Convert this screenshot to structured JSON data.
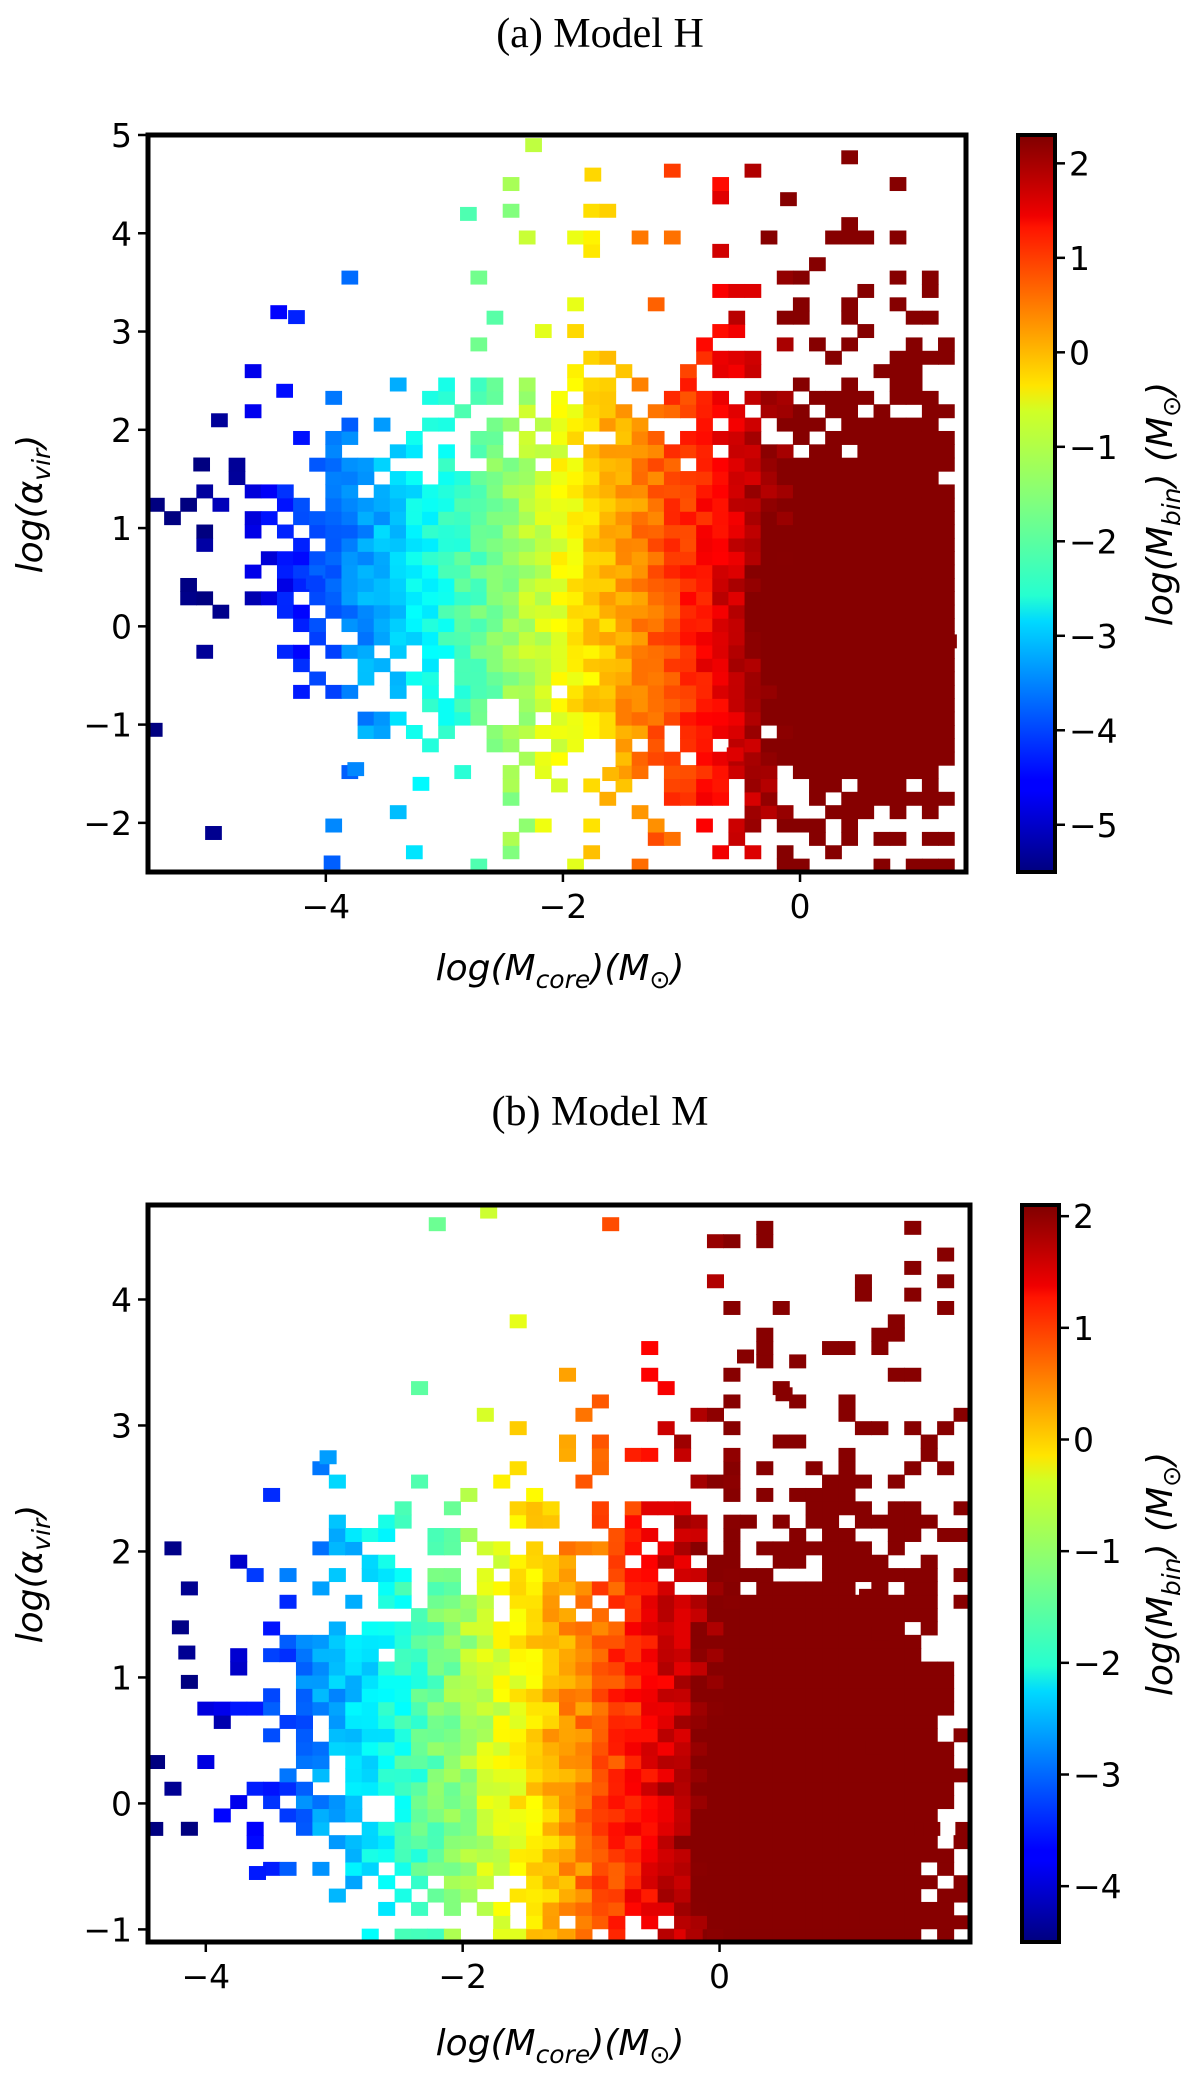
{
  "chart_data": [
    {
      "type": "heatmap",
      "title": "(a) Model H",
      "xlabel": "log(M_core)(M_sun)",
      "ylabel": "log(α_vir)",
      "colorbar_label": "log(M_bin) (M_sun)",
      "xlim": [
        -5.5,
        1.4
      ],
      "ylim": [
        -2.5,
        5.0
      ],
      "xticks": [
        -4,
        -2,
        0
      ],
      "xtick_labels": [
        "−4",
        "−2",
        "0"
      ],
      "yticks": [
        -2,
        -1,
        0,
        1,
        2,
        3,
        4,
        5
      ],
      "ytick_labels": [
        "−2",
        "−1",
        "0",
        "1",
        "2",
        "3",
        "4",
        "5"
      ],
      "clim": [
        -5.5,
        2.3
      ],
      "cticks": [
        -5,
        -4,
        -3,
        -2,
        -1,
        0,
        1,
        2
      ],
      "ctick_labels": [
        "−5",
        "−4",
        "−3",
        "−2",
        "−1",
        "0",
        "1",
        "2"
      ],
      "colormap": "jet",
      "grid": false,
      "cell_size": [
        0.136,
        0.136
      ],
      "trend": {
        "mass_center_x": -1.2,
        "peak": [
          0.4,
          -0.1
        ],
        "color_slope": 1.72,
        "color_intercept": 0.55,
        "sparse_cells": [
          [
            -5.45,
            -1.05
          ],
          [
            -4.95,
            -2.1
          ],
          [
            -3.95,
            -2.4
          ],
          [
            -4.4,
            3.2
          ],
          [
            -4.25,
            3.15
          ],
          [
            -2.25,
            4.9
          ],
          [
            -1.75,
            4.6
          ],
          [
            -2.8,
            4.2
          ],
          [
            -0.1,
            4.35
          ],
          [
            -5.05,
            1.65
          ],
          [
            1.25,
            -0.15
          ],
          [
            -1.6,
            -1.5
          ],
          [
            -3.2,
            -1.6
          ],
          [
            -4.9,
            2.1
          ],
          [
            -4.35,
            2.4
          ],
          [
            -4.1,
            0.45
          ],
          [
            -3.75,
            -1.45
          ],
          [
            -0.55,
            -1.3
          ]
        ]
      }
    },
    {
      "type": "heatmap",
      "title": "(b) Model M",
      "xlabel": "log(M_core)(M_sun)",
      "ylabel": "log(α_vir)",
      "colorbar_label": "log(M_bin) (M_sun)",
      "xlim": [
        -4.45,
        1.95
      ],
      "ylim": [
        -1.1,
        4.75
      ],
      "xticks": [
        -4,
        -2,
        0
      ],
      "xtick_labels": [
        "−4",
        "−2",
        "0"
      ],
      "yticks": [
        -1,
        0,
        1,
        2,
        3,
        4
      ],
      "ytick_labels": [
        "−1",
        "0",
        "1",
        "2",
        "3",
        "4"
      ],
      "clim": [
        -4.5,
        2.1
      ],
      "cticks": [
        -4,
        -3,
        -2,
        -1,
        0,
        1,
        2
      ],
      "ctick_labels": [
        "−4",
        "−3",
        "−2",
        "−1",
        "0",
        "1",
        "2"
      ],
      "colormap": "jet",
      "grid": false,
      "cell_size": [
        0.128,
        0.106
      ],
      "trend": {
        "mass_center_x": -1.0,
        "peak": [
          0.7,
          -0.2
        ],
        "color_slope": 1.7,
        "color_intercept": 0.55,
        "sparse_cells": [
          [
            -4.4,
            -0.2
          ],
          [
            1.9,
            -0.2
          ],
          [
            1.65,
            -0.2
          ],
          [
            1.45,
            -0.2
          ],
          [
            1.2,
            0.45
          ],
          [
            1.25,
            1.35
          ],
          [
            1.15,
            1.65
          ],
          [
            1.15,
            -0.9
          ],
          [
            -1.8,
            4.7
          ],
          [
            -2.2,
            4.6
          ],
          [
            -0.85,
            4.6
          ],
          [
            -1.7,
            -1.05
          ],
          [
            -1.2,
            -1.05
          ],
          [
            -0.2,
            -1.05
          ],
          [
            -3.6,
            -0.55
          ],
          [
            -4.2,
            1.4
          ],
          [
            -3.05,
            2.75
          ],
          [
            0.2,
            3.55
          ],
          [
            0.5,
            3.25
          ],
          [
            -4.15,
            1.2
          ]
        ]
      }
    }
  ]
}
